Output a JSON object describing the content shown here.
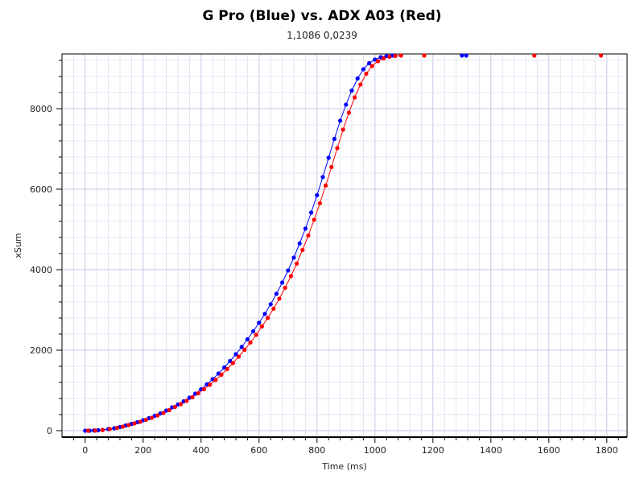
{
  "chart_data": {
    "type": "scatter",
    "title": "G Pro (Blue) vs. ADX A03 (Red)",
    "subtitle": "1,1086 0,0239",
    "xlabel": "Time (ms)",
    "ylabel": "xSum",
    "xlim": [
      -80,
      1870
    ],
    "ylim": [
      -160,
      9360
    ],
    "xticks": [
      0,
      200,
      400,
      600,
      800,
      1000,
      1200,
      1400,
      1600,
      1800
    ],
    "yticks": [
      0,
      2000,
      4000,
      6000,
      8000
    ],
    "grid": true,
    "series": [
      {
        "name": "G Pro",
        "color": "#0000ff",
        "points": [
          [
            0,
            0
          ],
          [
            15,
            0
          ],
          [
            30,
            5
          ],
          [
            45,
            10
          ],
          [
            60,
            20
          ],
          [
            80,
            40
          ],
          [
            100,
            60
          ],
          [
            120,
            90
          ],
          [
            140,
            130
          ],
          [
            160,
            170
          ],
          [
            180,
            210
          ],
          [
            200,
            260
          ],
          [
            220,
            310
          ],
          [
            240,
            370
          ],
          [
            260,
            430
          ],
          [
            280,
            500
          ],
          [
            300,
            580
          ],
          [
            320,
            650
          ],
          [
            340,
            730
          ],
          [
            360,
            820
          ],
          [
            380,
            920
          ],
          [
            400,
            1030
          ],
          [
            420,
            1150
          ],
          [
            440,
            1280
          ],
          [
            460,
            1420
          ],
          [
            480,
            1570
          ],
          [
            500,
            1730
          ],
          [
            520,
            1900
          ],
          [
            540,
            2080
          ],
          [
            560,
            2270
          ],
          [
            580,
            2470
          ],
          [
            600,
            2680
          ],
          [
            620,
            2900
          ],
          [
            640,
            3140
          ],
          [
            660,
            3400
          ],
          [
            680,
            3680
          ],
          [
            700,
            3980
          ],
          [
            720,
            4300
          ],
          [
            740,
            4650
          ],
          [
            760,
            5020
          ],
          [
            780,
            5420
          ],
          [
            800,
            5850
          ],
          [
            820,
            6300
          ],
          [
            840,
            6780
          ],
          [
            860,
            7250
          ],
          [
            880,
            7700
          ],
          [
            900,
            8100
          ],
          [
            920,
            8450
          ],
          [
            940,
            8750
          ],
          [
            960,
            8980
          ],
          [
            980,
            9130
          ],
          [
            1000,
            9220
          ],
          [
            1020,
            9280
          ],
          [
            1040,
            9310
          ],
          [
            1060,
            9320
          ]
        ],
        "outliers": [
          [
            1300,
            9320
          ],
          [
            1315,
            9320
          ]
        ]
      },
      {
        "name": "ADX A03",
        "color": "#ff0000",
        "points": [
          [
            10,
            0
          ],
          [
            35,
            3
          ],
          [
            60,
            15
          ],
          [
            85,
            40
          ],
          [
            110,
            70
          ],
          [
            130,
            100
          ],
          [
            150,
            140
          ],
          [
            170,
            180
          ],
          [
            190,
            220
          ],
          [
            210,
            270
          ],
          [
            230,
            320
          ],
          [
            250,
            380
          ],
          [
            270,
            440
          ],
          [
            290,
            510
          ],
          [
            310,
            590
          ],
          [
            330,
            660
          ],
          [
            350,
            740
          ],
          [
            370,
            830
          ],
          [
            390,
            930
          ],
          [
            410,
            1030
          ],
          [
            430,
            1140
          ],
          [
            450,
            1260
          ],
          [
            470,
            1390
          ],
          [
            490,
            1530
          ],
          [
            510,
            1680
          ],
          [
            530,
            1840
          ],
          [
            550,
            2010
          ],
          [
            570,
            2190
          ],
          [
            590,
            2380
          ],
          [
            610,
            2590
          ],
          [
            630,
            2800
          ],
          [
            650,
            3030
          ],
          [
            670,
            3280
          ],
          [
            690,
            3550
          ],
          [
            710,
            3840
          ],
          [
            730,
            4150
          ],
          [
            750,
            4490
          ],
          [
            770,
            4850
          ],
          [
            790,
            5240
          ],
          [
            810,
            5650
          ],
          [
            830,
            6090
          ],
          [
            850,
            6550
          ],
          [
            870,
            7020
          ],
          [
            890,
            7480
          ],
          [
            910,
            7900
          ],
          [
            930,
            8280
          ],
          [
            950,
            8600
          ],
          [
            970,
            8870
          ],
          [
            990,
            9060
          ],
          [
            1010,
            9180
          ],
          [
            1030,
            9250
          ],
          [
            1050,
            9290
          ],
          [
            1070,
            9310
          ],
          [
            1090,
            9320
          ]
        ],
        "outliers": [
          [
            1170,
            9320
          ],
          [
            1550,
            9320
          ],
          [
            1780,
            9320
          ]
        ]
      }
    ]
  }
}
